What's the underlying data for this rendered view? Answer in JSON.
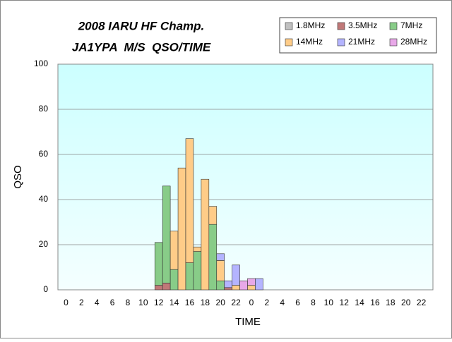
{
  "chart_data": {
    "type": "stacked_bar",
    "title": "2008 IARU HF Champ.",
    "subtitle": "JA1YPA  M/S  QSO/TIME",
    "x_label": "TIME",
    "y_label": "QSO",
    "categories": [
      "0",
      null,
      "2",
      null,
      "4",
      null,
      "6",
      null,
      "8",
      null,
      "10",
      null,
      "12",
      null,
      "14",
      null,
      "16",
      null,
      "18",
      null,
      "20",
      null,
      "22",
      null,
      "0",
      null,
      "2",
      null,
      "4",
      null,
      "6",
      null,
      "8",
      null,
      "10",
      null,
      "12",
      null,
      "14",
      null,
      "16",
      null,
      "18",
      null,
      "20",
      null,
      "22",
      null
    ],
    "series": [
      {
        "name": "1.8MHz",
        "color": "#c0c0c0",
        "values": [
          0,
          0,
          0,
          0,
          0,
          0,
          0,
          0,
          0,
          0,
          0,
          0,
          0,
          0,
          0,
          0,
          0,
          0,
          0,
          0,
          0,
          0,
          0,
          0,
          0,
          0,
          0,
          0,
          0,
          0,
          0,
          0,
          0,
          0,
          0,
          0,
          0,
          0,
          0,
          0,
          0,
          0,
          0,
          0,
          0,
          0,
          0,
          0
        ]
      },
      {
        "name": "3.5MHz",
        "color": "#c07878",
        "values": [
          0,
          0,
          0,
          0,
          0,
          0,
          0,
          0,
          0,
          0,
          0,
          0,
          2,
          3,
          0,
          0,
          0,
          0,
          0,
          0,
          0,
          1,
          0,
          0,
          0,
          0,
          0,
          0,
          0,
          0,
          0,
          0,
          0,
          0,
          0,
          0,
          0,
          0,
          0,
          0,
          0,
          0,
          0,
          0,
          0,
          0,
          0,
          0
        ]
      },
      {
        "name": "7MHz",
        "color": "#88cc88",
        "values": [
          0,
          0,
          0,
          0,
          0,
          0,
          0,
          0,
          0,
          0,
          0,
          0,
          19,
          43,
          9,
          0,
          12,
          17,
          0,
          29,
          4,
          0,
          0,
          0,
          0,
          0,
          0,
          0,
          0,
          0,
          0,
          0,
          0,
          0,
          0,
          0,
          0,
          0,
          0,
          0,
          0,
          0,
          0,
          0,
          0,
          0,
          0,
          0
        ]
      },
      {
        "name": "14MHz",
        "color": "#ffcc88",
        "values": [
          0,
          0,
          0,
          0,
          0,
          0,
          0,
          0,
          0,
          0,
          0,
          0,
          0,
          0,
          17,
          54,
          55,
          2,
          49,
          8,
          9,
          0,
          2,
          0,
          2,
          0,
          0,
          0,
          0,
          0,
          0,
          0,
          0,
          0,
          0,
          0,
          0,
          0,
          0,
          0,
          0,
          0,
          0,
          0,
          0,
          0,
          0,
          0
        ]
      },
      {
        "name": "21MHz",
        "color": "#b4b4ff",
        "values": [
          0,
          0,
          0,
          0,
          0,
          0,
          0,
          0,
          0,
          0,
          0,
          0,
          0,
          0,
          0,
          0,
          0,
          0,
          0,
          0,
          3,
          3,
          9,
          0,
          0,
          5,
          0,
          0,
          0,
          0,
          0,
          0,
          0,
          0,
          0,
          0,
          0,
          0,
          0,
          0,
          0,
          0,
          0,
          0,
          0,
          0,
          0,
          0
        ]
      },
      {
        "name": "28MHz",
        "color": "#e8a8e8",
        "values": [
          0,
          0,
          0,
          0,
          0,
          0,
          0,
          0,
          0,
          0,
          0,
          0,
          0,
          0,
          0,
          0,
          0,
          0,
          0,
          0,
          0,
          0,
          0,
          4,
          3,
          0,
          0,
          0,
          0,
          0,
          0,
          0,
          0,
          0,
          0,
          0,
          0,
          0,
          0,
          0,
          0,
          0,
          0,
          0,
          0,
          0,
          0,
          0
        ]
      }
    ],
    "ylim": [
      0,
      100
    ],
    "yticks": [
      0,
      20,
      40,
      60,
      80,
      100
    ],
    "grid": true
  }
}
